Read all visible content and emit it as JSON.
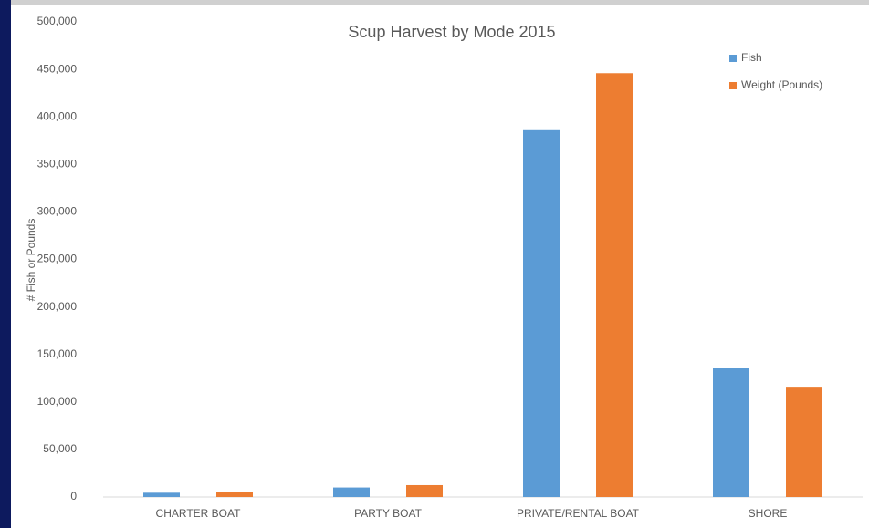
{
  "chart_data": {
    "type": "bar",
    "title": "Scup Harvest by Mode 2015",
    "y_label": "# Fish or Pounds",
    "categories": [
      "CHARTER BOAT",
      "PARTY BOAT",
      "PRIVATE/RENTAL BOAT",
      "SHORE"
    ],
    "series": [
      {
        "name": "Fish",
        "color": "#5b9bd5",
        "values": [
          4500,
          10000,
          386000,
          136000
        ]
      },
      {
        "name": "Weight (Pounds)",
        "color": "#ed7d31",
        "values": [
          5500,
          12500,
          446000,
          116000
        ]
      }
    ],
    "ylim": [
      0,
      500000
    ],
    "yticks": [
      0,
      {
        "value": 50000,
        "label": "50,000"
      },
      {
        "value": 100000,
        "label": "100,000"
      },
      {
        "value": 150000,
        "label": "150,000"
      },
      {
        "value": 200000,
        "label": "200,000"
      },
      {
        "value": 250000,
        "label": "250,000"
      },
      {
        "value": 300000,
        "label": "300,000"
      },
      {
        "value": 350000,
        "label": "350,000"
      },
      {
        "value": 400000,
        "label": "400,000"
      },
      {
        "value": 450000,
        "label": "450,000"
      },
      {
        "value": 500000,
        "label": "500,000"
      }
    ],
    "grid": false,
    "legend": "top-right"
  }
}
